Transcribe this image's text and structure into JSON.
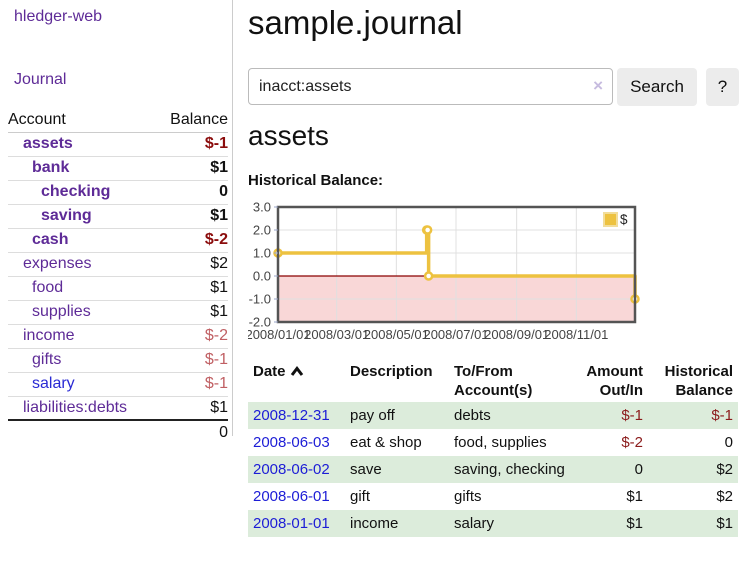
{
  "app": {
    "brand": "hledger-web"
  },
  "sidebar": {
    "nav": {
      "journal": "Journal"
    },
    "header": {
      "account": "Account",
      "balance": "Balance"
    },
    "accounts": [
      {
        "name": "assets",
        "balance": "$-1",
        "depth": 1,
        "bold": true,
        "neg": "dark"
      },
      {
        "name": "bank",
        "balance": "$1",
        "depth": 2,
        "bold": true,
        "neg": ""
      },
      {
        "name": "checking",
        "balance": "0",
        "depth": 3,
        "bold": true,
        "neg": ""
      },
      {
        "name": "saving",
        "balance": "$1",
        "depth": 3,
        "bold": true,
        "neg": ""
      },
      {
        "name": "cash",
        "balance": "$-2",
        "depth": 2,
        "bold": true,
        "neg": "dark"
      },
      {
        "name": "expenses",
        "balance": "$2",
        "depth": 1,
        "bold": false,
        "neg": ""
      },
      {
        "name": "food",
        "balance": "$1",
        "depth": 2,
        "bold": false,
        "neg": ""
      },
      {
        "name": "supplies",
        "balance": "$1",
        "depth": 2,
        "bold": false,
        "neg": ""
      },
      {
        "name": "income",
        "balance": "$-2",
        "depth": 1,
        "bold": false,
        "neg": "pale"
      },
      {
        "name": "gifts",
        "balance": "$-1",
        "depth": 2,
        "bold": false,
        "neg": "pale"
      },
      {
        "name": "salary",
        "balance": "$-1",
        "depth": 2,
        "bold": false,
        "neg": "pale",
        "blue": true
      },
      {
        "name": "liabilities:debts",
        "balance": "$1",
        "depth": 1,
        "bold": false,
        "neg": ""
      }
    ],
    "total": "0"
  },
  "header": {
    "title": "sample.journal"
  },
  "search": {
    "value": "inacct:assets",
    "clear_icon": "×",
    "button": "Search",
    "help_button": "?"
  },
  "main": {
    "account_title": "assets",
    "chart_label": "Historical Balance:"
  },
  "chart_data": {
    "type": "line",
    "step": true,
    "title": "Historical Balance:",
    "series": [
      {
        "name": "$",
        "color": "#edc240",
        "points": [
          [
            "2008-01-01",
            1
          ],
          [
            "2008-06-01",
            2
          ],
          [
            "2008-06-02",
            2
          ],
          [
            "2008-06-03",
            0
          ],
          [
            "2008-12-31",
            -1
          ]
        ]
      }
    ],
    "xlim": [
      "2008-01-01",
      "2008-12-31"
    ],
    "ylim": [
      -2,
      3
    ],
    "x_ticks": [
      "2008/01/01",
      "2008/03/01",
      "2008/05/01",
      "2008/07/01",
      "2008/09/01",
      "2008/11/01"
    ],
    "y_ticks": [
      3.0,
      2.0,
      1.0,
      0.0,
      -1.0,
      -2.0
    ],
    "grid": true,
    "legend": {
      "label": "$",
      "position": "top-right"
    },
    "colors": {
      "line": "#edc240",
      "marker_fill": "#ffffff",
      "negative_region": "#f9d7d7",
      "zero_line": "#8b0000",
      "gridline": "#e0e0e0",
      "border": "#545454",
      "tick_text": "#444444",
      "legend_swatch_border": "#f2dd9a"
    }
  },
  "register": {
    "headers": [
      "Date",
      "Description",
      "To/From Account(s)",
      "Amount Out/In",
      "Historical Balance"
    ],
    "sort": {
      "column": "Date",
      "direction": "asc"
    },
    "rows": [
      {
        "date": "2008-12-31",
        "description": "pay off",
        "accounts": "debts",
        "amount": "$-1",
        "balance": "$-1",
        "amount_neg": true,
        "balance_neg": true
      },
      {
        "date": "2008-06-03",
        "description": "eat & shop",
        "accounts": "food, supplies",
        "amount": "$-2",
        "balance": "0",
        "amount_neg": true,
        "balance_neg": false
      },
      {
        "date": "2008-06-02",
        "description": "save",
        "accounts": "saving, checking",
        "amount": "0",
        "balance": "$2",
        "amount_neg": false,
        "balance_neg": false
      },
      {
        "date": "2008-06-01",
        "description": "gift",
        "accounts": "gifts",
        "amount": "$1",
        "balance": "$2",
        "amount_neg": false,
        "balance_neg": false
      },
      {
        "date": "2008-01-01",
        "description": "income",
        "accounts": "salary",
        "amount": "$1",
        "balance": "$1",
        "amount_neg": false,
        "balance_neg": false
      }
    ]
  }
}
